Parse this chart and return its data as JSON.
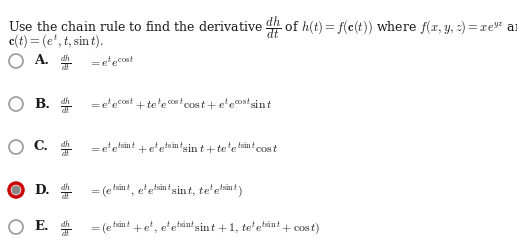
{
  "figsize": [
    5.17,
    2.5
  ],
  "dpi": 100,
  "bg_color": "#ffffff",
  "text_color": "#1a1a1a",
  "circle_color_unselected_edge": "#999999",
  "circle_color_selected_outer": "#cc0000",
  "circle_color_selected_inner": "#888888",
  "font_size_body": 9.0,
  "font_size_math": 8.5,
  "font_size_label": 9.5,
  "q_line1_parts": [
    {
      "text": "Use the chain rule to find the derivative ",
      "math": false,
      "bold": false
    },
    {
      "text": "$\\frac{dh}{dt}$",
      "math": true,
      "bold": false
    },
    {
      "text": " of ",
      "math": false,
      "bold": false
    },
    {
      "text": "$h(t) = f(\\mathbf{c}(t))$",
      "math": true,
      "bold": false
    },
    {
      "text": " where ",
      "math": false,
      "bold": false
    },
    {
      "text": "$f(x, y, z) = xe^{yz}$",
      "math": true,
      "bold": false
    },
    {
      "text": " and",
      "math": false,
      "bold": false
    }
  ],
  "q_line2": "$\\mathbf{c}(t) = (e^t, t, \\sin t).$",
  "choices": [
    {
      "label": "A.",
      "lhs": "$\\frac{dh}{dt}$",
      "rhs": "$= e^t e^{\\cos t}$",
      "selected": false
    },
    {
      "label": "B.",
      "lhs": "$\\frac{dh}{dt}$",
      "rhs": "$= e^t e^{\\cos t} + te^t e^{\\cos t} \\cos t + e^t e^{\\cos t} \\sin t$",
      "selected": false
    },
    {
      "label": "C.",
      "lhs": "$\\frac{dh}{dt}$",
      "rhs": "$= e^t e^{t\\sin t} + e^t e^{t\\sin t} \\sin t + te^t e^{t\\sin t} \\cos t$",
      "selected": false
    },
    {
      "label": "D.",
      "lhs": "$\\frac{dh}{dt}$",
      "rhs": "$= (e^{t\\sin t},\\, e^t e^{t\\sin t} \\sin t,\\, te^t e^{t\\sin t})$",
      "selected": true
    },
    {
      "label": "E.",
      "lhs": "$\\frac{dh}{dt}$",
      "rhs": "$= (e^{t\\sin t} + e^t,\\, e^t e^{t\\sin t} \\sin t + 1,\\, te^t e^{t\\sin t} + \\cos t)$",
      "selected": false
    }
  ]
}
